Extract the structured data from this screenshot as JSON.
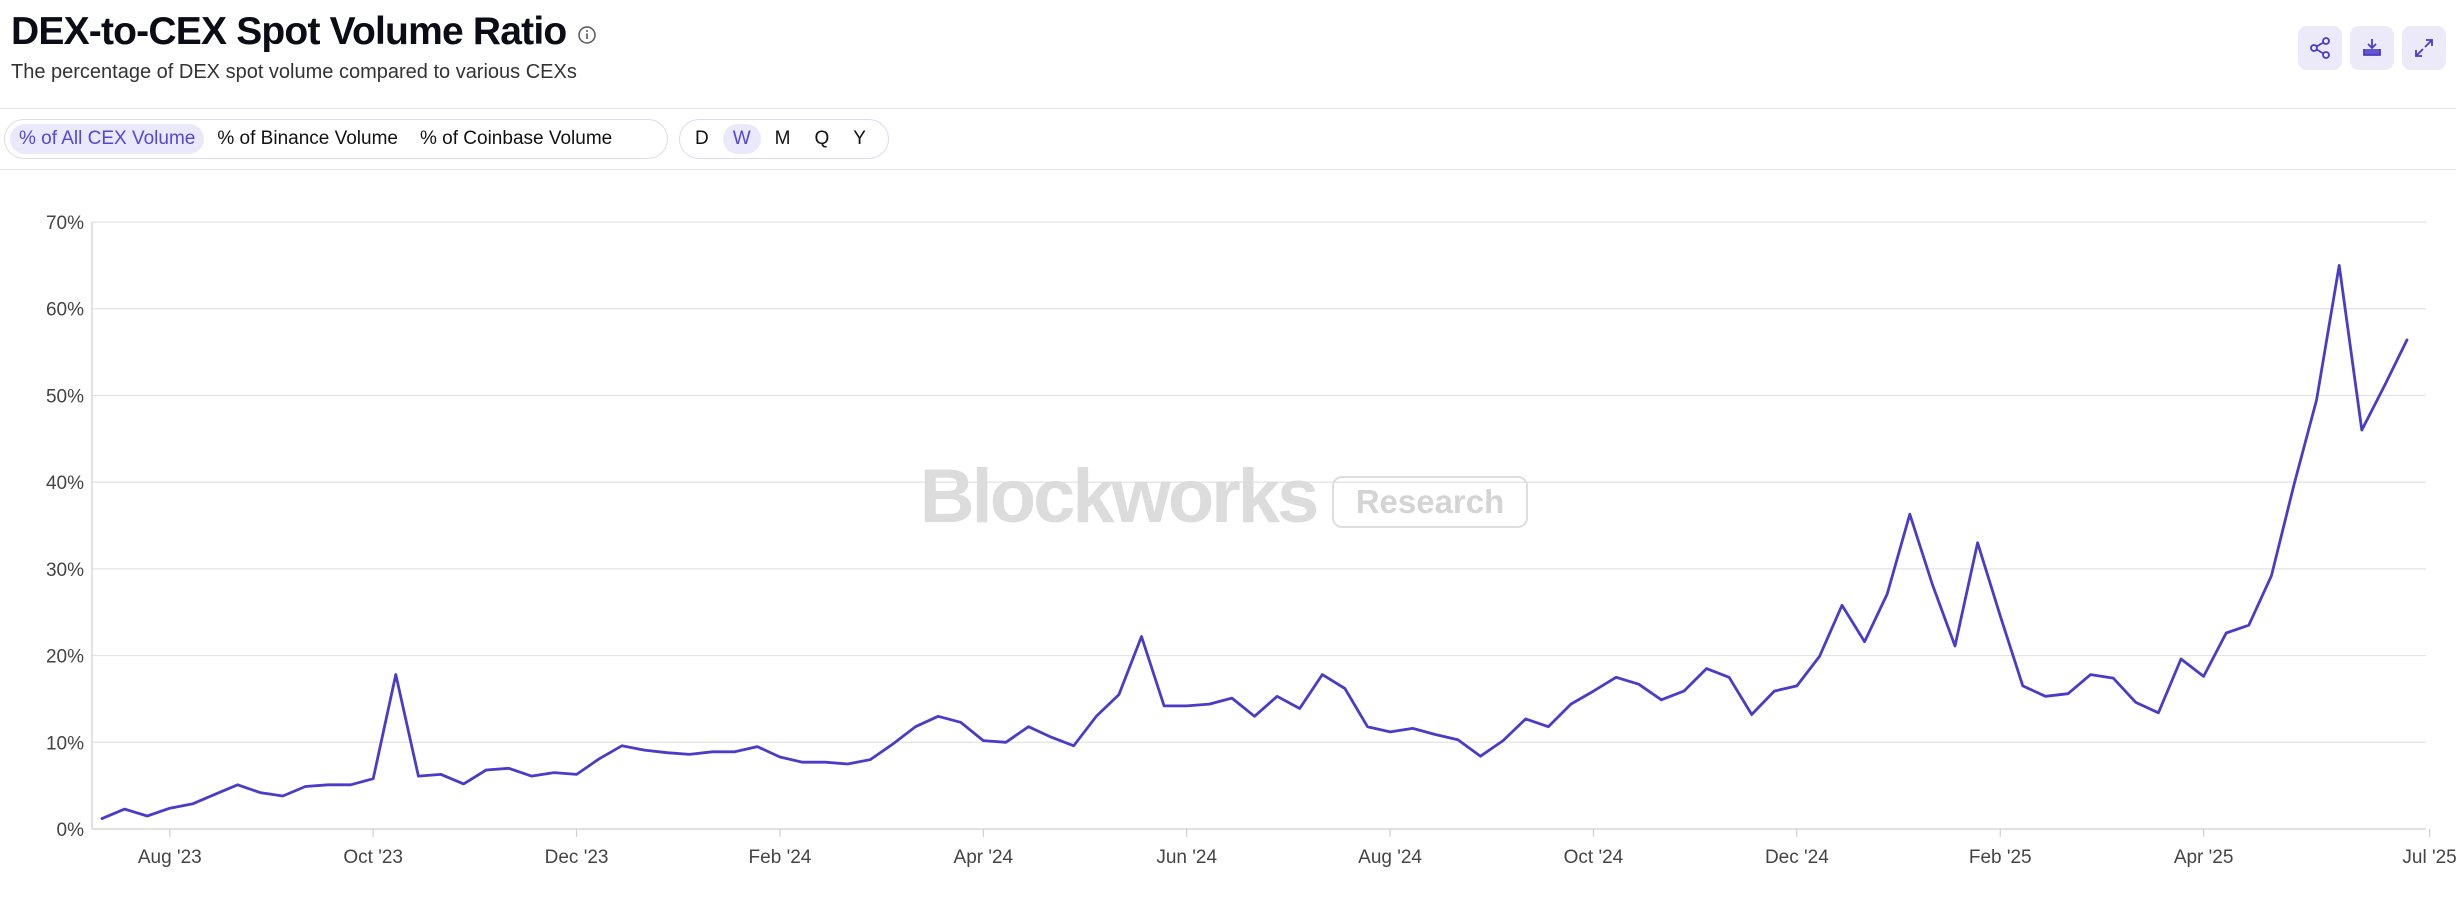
{
  "header": {
    "title": "DEX-to-CEX Spot Volume Ratio",
    "subtitle": "The percentage of DEX spot volume compared to various CEXs",
    "icons": [
      "info-icon",
      "share-icon",
      "download-icon",
      "expand-icon"
    ]
  },
  "controls": {
    "metric_tabs": [
      {
        "label": "% of All CEX Volume",
        "active": true
      },
      {
        "label": "% of Binance Volume",
        "active": false
      },
      {
        "label": "% of Coinbase Volume",
        "active": false
      }
    ],
    "interval_tabs": [
      {
        "label": "D",
        "active": false
      },
      {
        "label": "W",
        "active": true
      },
      {
        "label": "M",
        "active": false
      },
      {
        "label": "Q",
        "active": false
      },
      {
        "label": "Y",
        "active": false
      }
    ]
  },
  "watermark": {
    "brand": "Blockworks",
    "badge": "Research"
  },
  "colors": {
    "line": "#4a3bc8",
    "accent": "#5347d6",
    "grid": "#e3e3e3"
  },
  "chart_data": {
    "type": "line",
    "ylim": [
      0,
      70
    ],
    "yticks": [
      "0%",
      "10%",
      "20%",
      "30%",
      "40%",
      "50%",
      "60%",
      "70%"
    ],
    "xticks": [
      "Aug '23",
      "Oct '23",
      "Dec '23",
      "Feb '24",
      "Apr '24",
      "Jun '24",
      "Aug '24",
      "Oct '24",
      "Dec '24",
      "Feb '25",
      "Apr '25",
      "Jul '25"
    ],
    "xtick_weeks": [
      3,
      12,
      21,
      30,
      39,
      48,
      57,
      66,
      75,
      84,
      93,
      103
    ],
    "series": [
      {
        "values": [
          1.2,
          2.3,
          1.5,
          2.4,
          2.9,
          4.0,
          5.1,
          4.2,
          3.8,
          4.9,
          5.1,
          5.1,
          5.8,
          17.8,
          6.1,
          6.3,
          5.2,
          6.8,
          7.0,
          6.1,
          6.5,
          6.3,
          8.1,
          9.6,
          9.1,
          8.8,
          8.6,
          8.9,
          8.9,
          9.5,
          8.3,
          7.7,
          7.7,
          7.5,
          8.0,
          9.8,
          11.8,
          13.0,
          12.3,
          10.2,
          10.0,
          11.8,
          10.6,
          9.6,
          13.0,
          15.5,
          22.2,
          14.2,
          14.2,
          14.4,
          15.1,
          13.0,
          15.3,
          13.9,
          17.8,
          16.2,
          11.8,
          11.2,
          11.6,
          10.9,
          10.3,
          8.4,
          10.2,
          12.7,
          11.8,
          14.4,
          15.9,
          17.5,
          16.7,
          14.9,
          15.9,
          18.5,
          17.5,
          13.2,
          15.9,
          16.5,
          19.9,
          25.8,
          21.6,
          27.1,
          36.3,
          28.2,
          21.1,
          33.0,
          24.6,
          16.5,
          15.3,
          15.6,
          17.8,
          17.4,
          14.6,
          13.4,
          19.6,
          17.6,
          22.6,
          23.5,
          29.2,
          39.7,
          49.5,
          65.0,
          46.0,
          51.1,
          56.4
        ]
      }
    ]
  }
}
